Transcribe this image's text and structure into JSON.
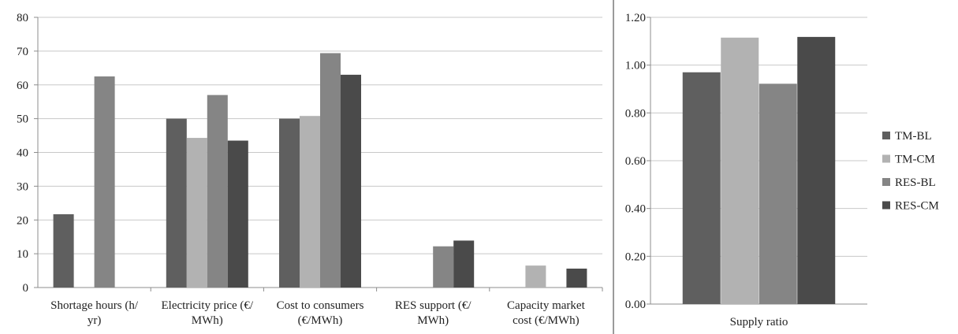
{
  "colors": {
    "TM-BL": "#5f5f5f",
    "TM-CM": "#b2b2b2",
    "RES-BL": "#858585",
    "RES-CM": "#4a4a4a",
    "grid": "#c8c8c8",
    "axis": "#8c8c8c"
  },
  "chart_data": [
    {
      "type": "bar",
      "categories": [
        [
          "Shortage hours (h/",
          "yr)"
        ],
        [
          "Electricity price (€/",
          "MWh)"
        ],
        [
          "Cost to consumers",
          "(€/MWh)"
        ],
        [
          "RES support (€/",
          "MWh)"
        ],
        [
          "Capacity market",
          "cost (€/MWh)"
        ]
      ],
      "series": [
        {
          "name": "TM-BL",
          "values": [
            21.7,
            50.0,
            50.0,
            null,
            null
          ]
        },
        {
          "name": "TM-CM",
          "values": [
            null,
            44.3,
            50.8,
            null,
            6.5
          ]
        },
        {
          "name": "RES-BL",
          "values": [
            62.5,
            57.0,
            69.4,
            12.2,
            null
          ]
        },
        {
          "name": "RES-CM",
          "values": [
            null,
            43.5,
            63.0,
            13.9,
            5.6
          ]
        }
      ],
      "ylim": [
        0,
        80
      ],
      "yticks": [
        "0",
        "10",
        "20",
        "30",
        "40",
        "50",
        "60",
        "70",
        "80"
      ],
      "grid": true
    },
    {
      "type": "bar",
      "categories": [
        [
          "Supply ratio"
        ]
      ],
      "series": [
        {
          "name": "TM-BL",
          "values": [
            0.97
          ]
        },
        {
          "name": "TM-CM",
          "values": [
            1.115
          ]
        },
        {
          "name": "RES-BL",
          "values": [
            0.922
          ]
        },
        {
          "name": "RES-CM",
          "values": [
            1.118
          ]
        }
      ],
      "ylim": [
        0,
        1.2
      ],
      "yticks": [
        "0.00",
        "0.20",
        "0.40",
        "0.60",
        "0.80",
        "1.00",
        "1.20"
      ],
      "grid": true,
      "legend": {
        "placement": "right",
        "entries": [
          "TM-BL",
          "TM-CM",
          "RES-BL",
          "RES-CM"
        ]
      }
    }
  ]
}
